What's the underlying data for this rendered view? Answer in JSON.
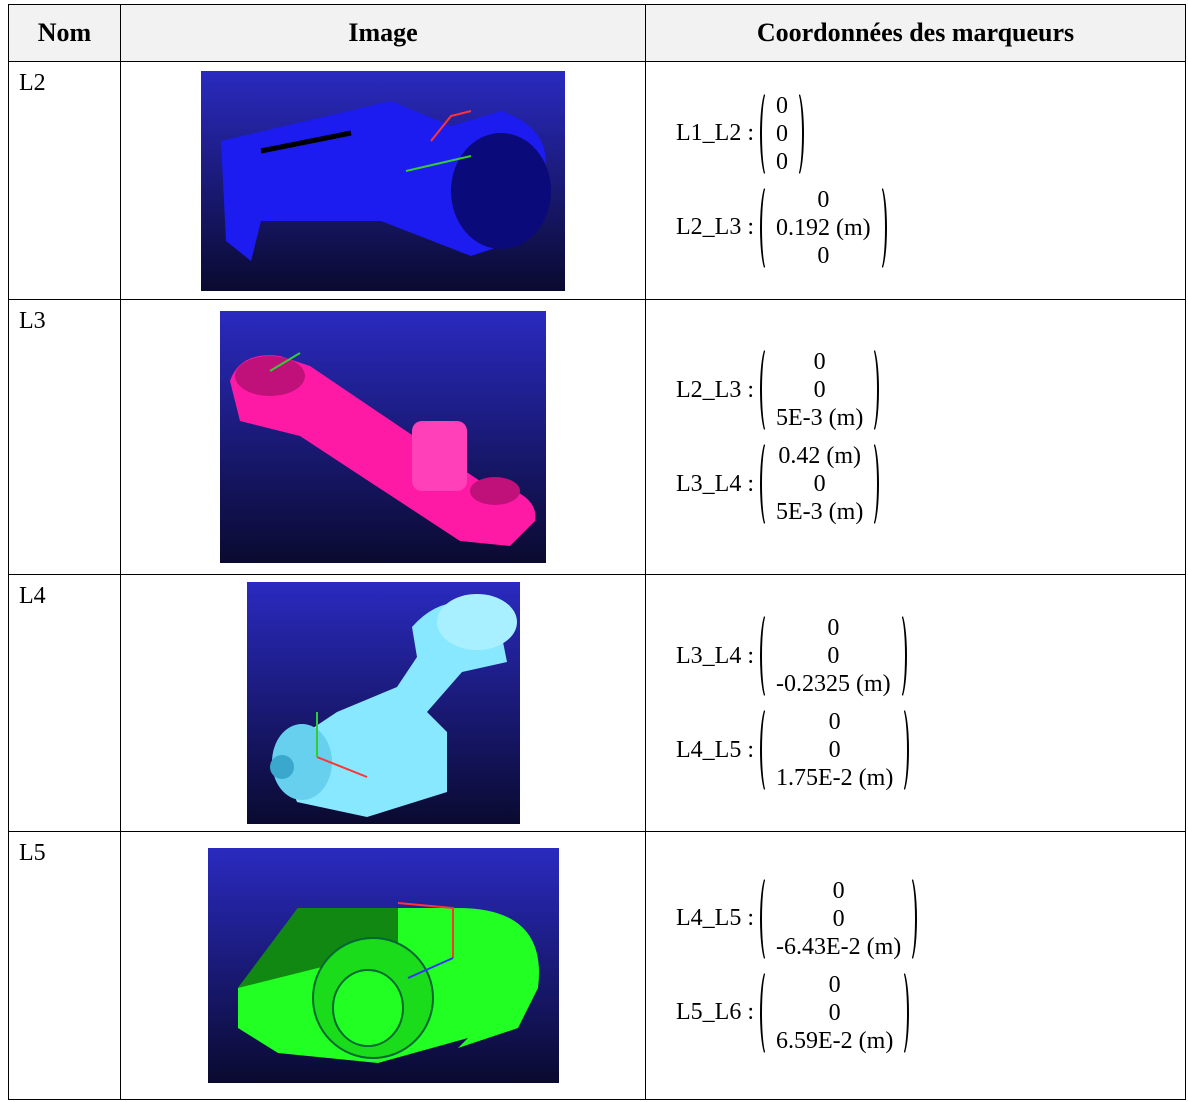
{
  "table": {
    "header": [
      "Nom",
      "Image",
      "Coordonnées des marqueurs"
    ],
    "rows": [
      {
        "name": "L2",
        "markers": [
          {
            "label": "L1_L2 :",
            "vector": [
              "0",
              "0",
              "0"
            ]
          },
          {
            "label": "L2_L3 :",
            "vector": [
              "0",
              "0.192 (m)",
              "0"
            ]
          }
        ]
      },
      {
        "name": "L3",
        "markers": [
          {
            "label": "L2_L3 :",
            "vector": [
              "0",
              "0",
              "5E-3 (m)"
            ]
          },
          {
            "label": "L3_L4 :",
            "vector": [
              "0.42 (m)",
              "0",
              "5E-3 (m)"
            ]
          }
        ]
      },
      {
        "name": "L4",
        "markers": [
          {
            "label": "L3_L4 :",
            "vector": [
              "0",
              "0",
              "-0.2325 (m)"
            ]
          },
          {
            "label": "L4_L5 :",
            "vector": [
              "0",
              "0",
              "1.75E-2 (m)"
            ]
          }
        ]
      },
      {
        "name": "L5",
        "markers": [
          {
            "label": "L4_L5 :",
            "vector": [
              "0",
              "0",
              "-6.43E-2 (m)"
            ]
          },
          {
            "label": "L5_L6 :",
            "vector": [
              "0",
              "0",
              "6.59E-2 (m)"
            ]
          }
        ]
      }
    ]
  }
}
